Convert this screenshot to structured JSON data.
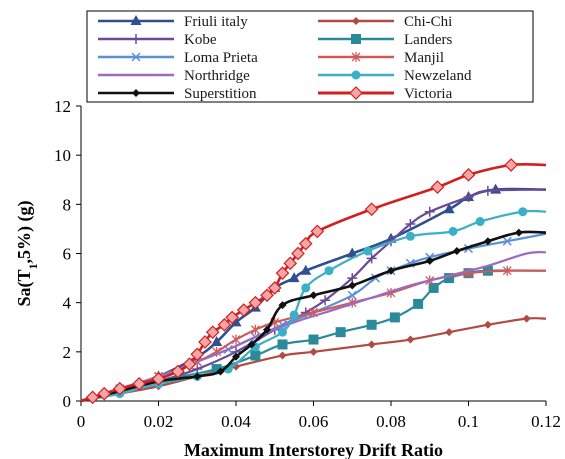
{
  "chart_data": {
    "type": "line",
    "xlabel": "Maximum  Interstorey Drift Ratio",
    "ylabel_parts": {
      "before": "Sa(T",
      "sub": "1",
      "after": ",5%) (g)"
    },
    "xlim": [
      0,
      0.12
    ],
    "ylim": [
      0,
      12
    ],
    "xticks": [
      0,
      0.02,
      0.04,
      0.06,
      0.08,
      0.1,
      0.12
    ],
    "xtick_labels": [
      "0",
      "0.02",
      "0.04",
      "0.06",
      "0.08",
      "0.1",
      "0.12"
    ],
    "yticks": [
      0,
      2,
      4,
      6,
      8,
      10,
      12
    ],
    "ytick_labels": [
      "0",
      "2",
      "4",
      "6",
      "8",
      "10",
      "12"
    ],
    "grid": false,
    "legend_position": "top",
    "series": [
      {
        "name": "Friuli italy",
        "color": "#2f4f8f",
        "marker": "triangle",
        "points": [
          [
            0,
            0
          ],
          [
            0.01,
            0.5
          ],
          [
            0.02,
            1.0
          ],
          [
            0.03,
            1.8
          ],
          [
            0.035,
            2.4
          ],
          [
            0.04,
            3.2
          ],
          [
            0.045,
            3.8
          ],
          [
            0.05,
            4.6
          ],
          [
            0.055,
            5.0
          ],
          [
            0.058,
            5.3
          ],
          [
            0.07,
            6.0
          ],
          [
            0.08,
            6.6
          ],
          [
            0.095,
            7.8
          ],
          [
            0.1,
            8.3
          ],
          [
            0.107,
            8.6
          ],
          [
            0.12,
            8.6
          ]
        ]
      },
      {
        "name": "Chi-Chi",
        "color": "#b04a44",
        "marker": "diamond",
        "points": [
          [
            0,
            0
          ],
          [
            0.01,
            0.3
          ],
          [
            0.02,
            0.6
          ],
          [
            0.03,
            1.0
          ],
          [
            0.04,
            1.4
          ],
          [
            0.052,
            1.85
          ],
          [
            0.06,
            2.0
          ],
          [
            0.075,
            2.3
          ],
          [
            0.085,
            2.5
          ],
          [
            0.095,
            2.8
          ],
          [
            0.105,
            3.1
          ],
          [
            0.115,
            3.35
          ],
          [
            0.12,
            3.35
          ]
        ]
      },
      {
        "name": "Kobe",
        "color": "#6a4a96",
        "marker": "plus",
        "points": [
          [
            0,
            0
          ],
          [
            0.01,
            0.4
          ],
          [
            0.02,
            0.8
          ],
          [
            0.03,
            1.3
          ],
          [
            0.04,
            2.0
          ],
          [
            0.05,
            2.9
          ],
          [
            0.058,
            3.6
          ],
          [
            0.063,
            4.1
          ],
          [
            0.07,
            5.0
          ],
          [
            0.075,
            5.8
          ],
          [
            0.08,
            6.5
          ],
          [
            0.085,
            7.2
          ],
          [
            0.09,
            7.7
          ],
          [
            0.1,
            8.3
          ],
          [
            0.105,
            8.55
          ],
          [
            0.12,
            8.6
          ]
        ]
      },
      {
        "name": "Landers",
        "color": "#2a8a9a",
        "marker": "square",
        "points": [
          [
            0,
            0
          ],
          [
            0.02,
            0.8
          ],
          [
            0.035,
            1.3
          ],
          [
            0.045,
            1.85
          ],
          [
            0.052,
            2.3
          ],
          [
            0.06,
            2.5
          ],
          [
            0.067,
            2.8
          ],
          [
            0.075,
            3.1
          ],
          [
            0.081,
            3.4
          ],
          [
            0.087,
            3.95
          ],
          [
            0.091,
            4.6
          ],
          [
            0.095,
            5.0
          ],
          [
            0.1,
            5.2
          ],
          [
            0.105,
            5.3
          ],
          [
            0.12,
            5.3
          ]
        ]
      },
      {
        "name": "Loma Prieta",
        "color": "#5b8fd6",
        "marker": "x",
        "points": [
          [
            0,
            0
          ],
          [
            0.01,
            0.5
          ],
          [
            0.02,
            1.0
          ],
          [
            0.03,
            1.6
          ],
          [
            0.038,
            2.1
          ],
          [
            0.045,
            2.6
          ],
          [
            0.052,
            3.1
          ],
          [
            0.06,
            3.6
          ],
          [
            0.07,
            4.3
          ],
          [
            0.076,
            5.0
          ],
          [
            0.08,
            5.3
          ],
          [
            0.085,
            5.6
          ],
          [
            0.09,
            5.85
          ],
          [
            0.1,
            6.2
          ],
          [
            0.11,
            6.5
          ],
          [
            0.12,
            6.8
          ]
        ]
      },
      {
        "name": "Manjil",
        "color": "#d05a5a",
        "marker": "asterisk",
        "points": [
          [
            0,
            0
          ],
          [
            0.01,
            0.5
          ],
          [
            0.02,
            1.0
          ],
          [
            0.03,
            1.6
          ],
          [
            0.035,
            2.0
          ],
          [
            0.04,
            2.5
          ],
          [
            0.045,
            2.9
          ],
          [
            0.05,
            3.2
          ],
          [
            0.06,
            3.6
          ],
          [
            0.07,
            4.0
          ],
          [
            0.08,
            4.4
          ],
          [
            0.09,
            4.9
          ],
          [
            0.1,
            5.2
          ],
          [
            0.11,
            5.3
          ],
          [
            0.12,
            5.3
          ]
        ]
      },
      {
        "name": "Northridge",
        "color": "#9b6bc2",
        "marker": "none",
        "points": [
          [
            0,
            0
          ],
          [
            0.01,
            0.5
          ],
          [
            0.02,
            1.0
          ],
          [
            0.03,
            1.6
          ],
          [
            0.038,
            2.1
          ],
          [
            0.045,
            2.6
          ],
          [
            0.055,
            3.2
          ],
          [
            0.065,
            3.7
          ],
          [
            0.075,
            4.2
          ],
          [
            0.085,
            4.7
          ],
          [
            0.095,
            5.1
          ],
          [
            0.105,
            5.5
          ],
          [
            0.115,
            6.0
          ],
          [
            0.12,
            6.05
          ]
        ]
      },
      {
        "name": "Newzeland",
        "color": "#3aafc6",
        "marker": "circle",
        "points": [
          [
            0,
            0
          ],
          [
            0.01,
            0.3
          ],
          [
            0.02,
            0.7
          ],
          [
            0.03,
            1.0
          ],
          [
            0.038,
            1.3
          ],
          [
            0.045,
            2.2
          ],
          [
            0.052,
            2.8
          ],
          [
            0.055,
            3.5
          ],
          [
            0.058,
            4.6
          ],
          [
            0.064,
            5.3
          ],
          [
            0.074,
            6.1
          ],
          [
            0.085,
            6.7
          ],
          [
            0.096,
            6.9
          ],
          [
            0.103,
            7.3
          ],
          [
            0.114,
            7.7
          ],
          [
            0.12,
            7.7
          ]
        ]
      },
      {
        "name": "Superstition",
        "color": "#111111",
        "marker": "diamond",
        "points": [
          [
            0,
            0
          ],
          [
            0.01,
            0.4
          ],
          [
            0.02,
            0.8
          ],
          [
            0.03,
            1.0
          ],
          [
            0.036,
            1.2
          ],
          [
            0.04,
            1.8
          ],
          [
            0.044,
            2.3
          ],
          [
            0.048,
            2.9
          ],
          [
            0.052,
            3.9
          ],
          [
            0.06,
            4.3
          ],
          [
            0.07,
            4.7
          ],
          [
            0.08,
            5.3
          ],
          [
            0.09,
            5.7
          ],
          [
            0.097,
            6.1
          ],
          [
            0.105,
            6.5
          ],
          [
            0.113,
            6.85
          ],
          [
            0.12,
            6.85
          ]
        ]
      },
      {
        "name": "Victoria",
        "color": "#d41e1e",
        "marker": "diamond-big",
        "points": [
          [
            0,
            0
          ],
          [
            0.003,
            0.15
          ],
          [
            0.006,
            0.3
          ],
          [
            0.01,
            0.5
          ],
          [
            0.015,
            0.7
          ],
          [
            0.02,
            0.9
          ],
          [
            0.025,
            1.2
          ],
          [
            0.028,
            1.5
          ],
          [
            0.03,
            1.9
          ],
          [
            0.032,
            2.4
          ],
          [
            0.034,
            2.8
          ],
          [
            0.037,
            3.1
          ],
          [
            0.039,
            3.4
          ],
          [
            0.042,
            3.7
          ],
          [
            0.045,
            4.0
          ],
          [
            0.048,
            4.3
          ],
          [
            0.05,
            4.6
          ],
          [
            0.052,
            5.2
          ],
          [
            0.054,
            5.6
          ],
          [
            0.056,
            6.0
          ],
          [
            0.058,
            6.4
          ],
          [
            0.061,
            6.9
          ],
          [
            0.075,
            7.8
          ],
          [
            0.092,
            8.7
          ],
          [
            0.1,
            9.2
          ],
          [
            0.111,
            9.6
          ],
          [
            0.12,
            9.6
          ]
        ]
      }
    ]
  }
}
